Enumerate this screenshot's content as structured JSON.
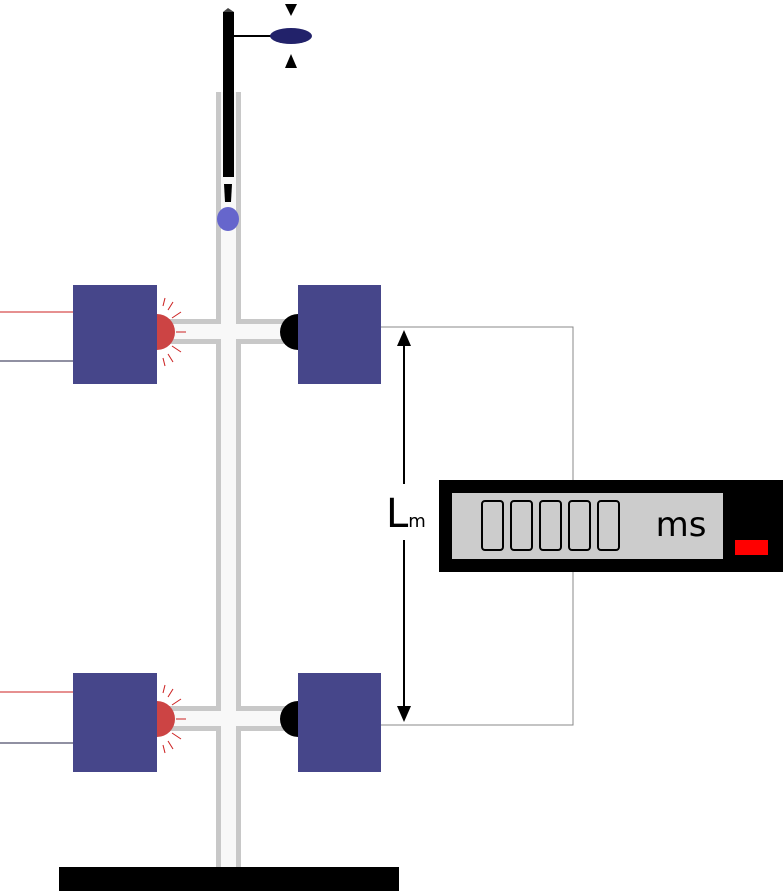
{
  "diagram": {
    "length_label": "L",
    "length_subscript": "m",
    "timer": {
      "digits": [
        "0",
        "0",
        "0",
        "0",
        "0"
      ],
      "unit": "ms"
    }
  },
  "colors": {
    "background": "#ffffff",
    "sensor_block": "#46468a",
    "emitter": "#cc4444",
    "emitter_rays": "#cc2222",
    "receiver": "#000000",
    "tube_outline": "#c8c8c8",
    "tube_fill": "#f8f8f8",
    "ball_in_tube": "#6666cc",
    "dropper_ball": "#22226a",
    "timer_body": "#000000",
    "timer_display": "#cccccc",
    "timer_indicator": "#ff0000",
    "wire_red": "#cc2222",
    "wire_dark": "#222244",
    "base": "#000000"
  },
  "icons": {
    "dropper": "drop-rod-icon",
    "arrow_down": "arrow-down-icon",
    "arrow_up": "arrow-up-icon"
  }
}
